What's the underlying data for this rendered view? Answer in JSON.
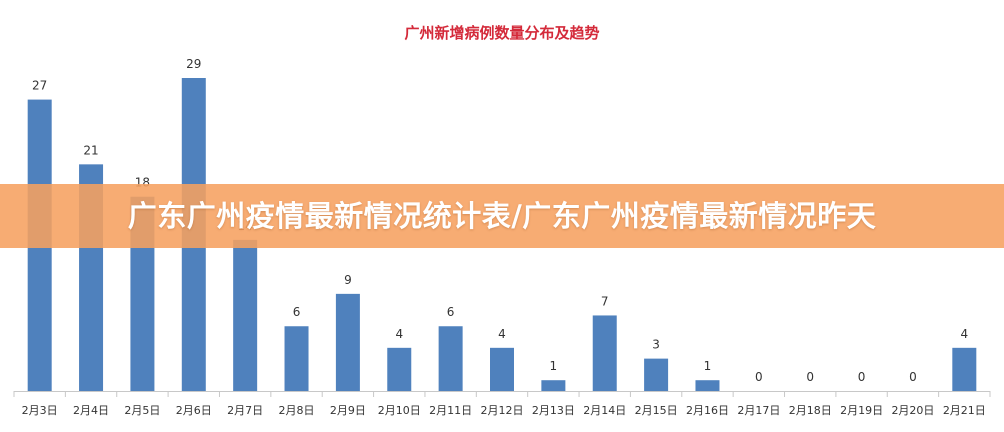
{
  "colors": {
    "bar": "#4f81bd",
    "title": "#d42a3a",
    "banner": "#f6a060"
  },
  "banner": {
    "text": "广东广州疫情最新情况统计表/广东广州疫情最新情况昨天"
  },
  "chart_data": {
    "type": "bar",
    "title": "广州新增病例数量分布及趋势",
    "xlabel": "",
    "ylabel": "",
    "ylim": [
      0,
      29
    ],
    "grid": false,
    "categories": [
      "2月3日",
      "2月4日",
      "2月5日",
      "2月6日",
      "2月7日",
      "2月8日",
      "2月9日",
      "2月10日",
      "2月11日",
      "2月12日",
      "2月13日",
      "2月14日",
      "2月15日",
      "2月16日",
      "2月17日",
      "2月18日",
      "2月19日",
      "2月20日",
      "2月21日"
    ],
    "values": [
      27,
      21,
      18,
      29,
      14,
      6,
      9,
      4,
      6,
      4,
      1,
      7,
      3,
      1,
      0,
      0,
      0,
      0,
      4
    ]
  }
}
